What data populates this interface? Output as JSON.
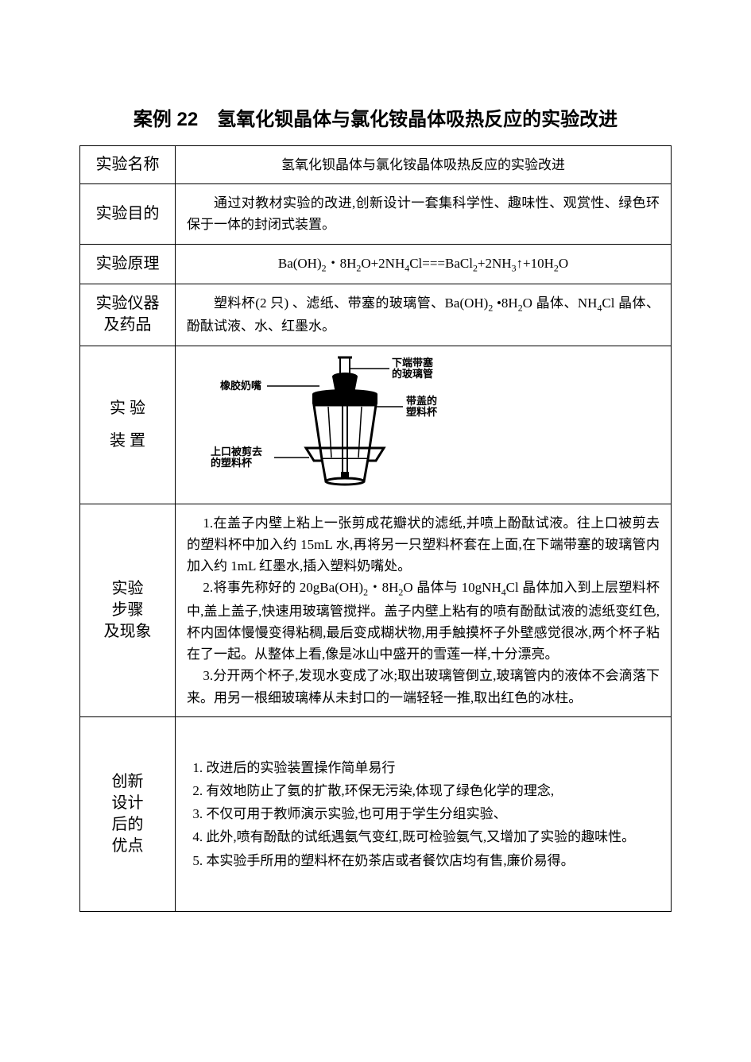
{
  "title": "案例 22　氢氧化钡晶体与氯化铵晶体吸热反应的实验改进",
  "rows": {
    "name": {
      "label": "实验名称",
      "text": "氢氧化钡晶体与氯化铵晶体吸热反应的实验改进"
    },
    "purpose": {
      "label": "实验目的",
      "text": "通过对教材实验的改进,创新设计一套集科学性、趣味性、观赏性、绿色环保于一体的封闭式装置。"
    },
    "principle": {
      "label": "实验原理",
      "formula_html": "Ba(OH)<sub>2</sub>・8H<sub>2</sub>O+2NH<sub>4</sub>Cl===BaCl<sub>2</sub>+2NH<sub>3</sub>↑+10H<sub>2</sub>O"
    },
    "instruments": {
      "label_l1": "实验仪器",
      "label_l2": "及药品",
      "text_html": "塑料杯(2 只) 、滤纸、带塞的玻璃管、Ba(OH)<sub>2</sub> •8H<sub>2</sub>O 晶体、NH<sub>4</sub>Cl 晶体、酚酞试液、水、红墨水。"
    },
    "apparatus": {
      "label_l1": "实 验",
      "label_l2": "装 置",
      "labels": {
        "top_tube_l1": "下端带塞",
        "top_tube_l2": "的玻璃管",
        "nipple": "橡胶奶嘴",
        "lid_cup_l1": "带盖的",
        "lid_cup_l2": "塑料杯",
        "cut_cup_l1": "上口被剪去",
        "cut_cup_l2": "的塑料杯"
      },
      "colors": {
        "stroke": "#000000",
        "fill_body": "#000000",
        "fill_light": "#ffffff"
      }
    },
    "steps": {
      "label_l1": "实验",
      "label_l2": "步骤",
      "label_l3": "及现象",
      "p1": "1.在盖子内壁上粘上一张剪成花瓣状的滤纸,并喷上酚酞试液。往上口被剪去的塑料杯中加入约 15mL 水,再将另一只塑料杯套在上面,在下端带塞的玻璃管内加入约 1mL 红墨水,插入塑料奶嘴处。",
      "p2_html": "2.将事先称好的 20gBa(OH)<sub>2</sub>・8H<sub>2</sub>O 晶体与 10gNH<sub>4</sub>Cl 晶体加入到上层塑料杯中,盖上盖子,快速用玻璃管搅拌。盖子内壁上粘有的喷有酚酞试液的滤纸变红色,杯内固体慢慢变得粘稠,最后变成糊状物,用手触摸杯子外壁感觉很冰,两个杯子粘在了一起。从整体上看,像是冰山中盛开的雪莲一样,十分漂亮。",
      "p3": "3.分开两个杯子,发现水变成了冰;取出玻璃管倒立,玻璃管内的液体不会滴落下来。用另一根细玻璃棒从未封口的一端轻轻一推,取出红色的冰柱。"
    },
    "advantages": {
      "label_l1": "创新",
      "label_l2": "设计",
      "label_l3": "后的",
      "label_l4": "优点",
      "items": [
        "改进后的实验装置操作简单易行",
        "有效地防止了氨的扩散,环保无污染,体现了绿色化学的理念,",
        "不仅可用于教师演示实验,也可用于学生分组实验、",
        "此外,喷有酚酞的试纸遇氨气变红,既可检验氨气,又增加了实验的趣味性。",
        "本实验手所用的塑料杯在奶茶店或者餐饮店均有售,廉价易得。"
      ]
    }
  }
}
